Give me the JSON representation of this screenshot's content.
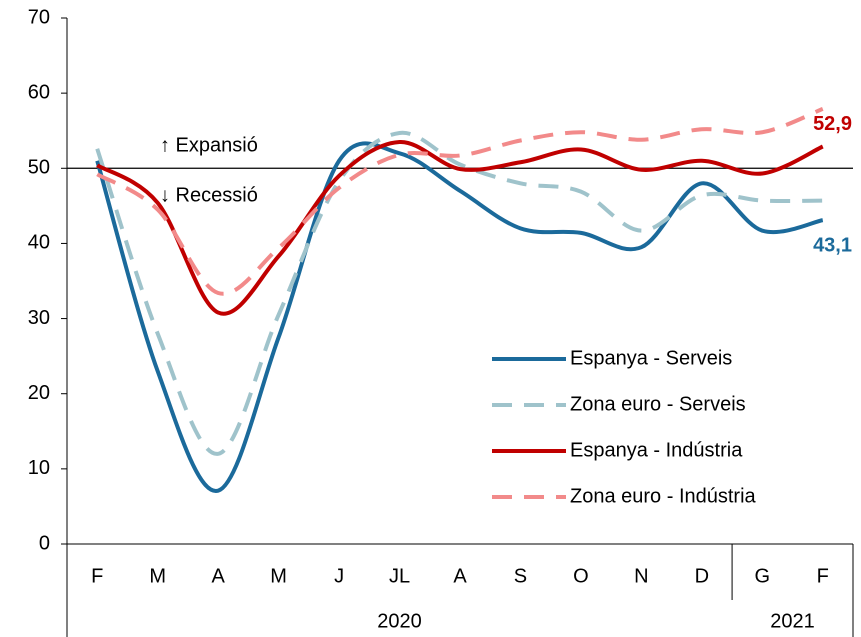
{
  "chart_data": {
    "type": "line",
    "categories": [
      "F",
      "M",
      "A",
      "M",
      "J",
      "JL",
      "A",
      "S",
      "O",
      "N",
      "D",
      "G",
      "F"
    ],
    "groups": [
      {
        "label": "2020",
        "count": 11
      },
      {
        "label": "2021",
        "count": 2
      }
    ],
    "ylim": [
      0,
      70
    ],
    "yticks": [
      0,
      10,
      20,
      30,
      40,
      50,
      60,
      70
    ],
    "reference_line": 50,
    "annotations": [
      "↑ Expansió",
      "↓ Recessió"
    ],
    "legend": "lower right",
    "series": [
      {
        "name": "Espanya - Serveis",
        "color": "#1b6a9b",
        "dashed": false,
        "values": [
          51.0,
          23.0,
          7.1,
          27.5,
          51.0,
          52.0,
          47.0,
          42.0,
          41.4,
          39.5,
          48.0,
          41.7,
          43.1
        ],
        "end_label": "43,1"
      },
      {
        "name": "Zona euro - Serveis",
        "color": "#9fc3cb",
        "dashed": true,
        "values": [
          52.6,
          28.0,
          12.0,
          30.5,
          48.3,
          54.7,
          50.5,
          48.0,
          46.9,
          41.7,
          46.4,
          45.7,
          45.7
        ]
      },
      {
        "name": "Espanya - Indústria",
        "color": "#c00000",
        "dashed": false,
        "values": [
          50.4,
          45.4,
          30.8,
          38.3,
          49.0,
          53.5,
          49.9,
          50.8,
          52.5,
          49.8,
          51.0,
          49.3,
          52.9
        ],
        "end_label": "52,9"
      },
      {
        "name": "Zona euro - Indústria",
        "color": "#f28a8a",
        "dashed": true,
        "values": [
          49.2,
          44.5,
          33.4,
          39.4,
          47.4,
          51.8,
          51.7,
          53.7,
          54.8,
          53.8,
          55.2,
          54.8,
          57.9
        ]
      }
    ]
  }
}
